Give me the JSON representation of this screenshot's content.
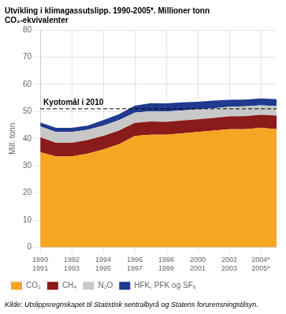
{
  "chart_data": {
    "type": "area",
    "stacked": true,
    "title": "Utvikling i klimagassutslipp. 1990-2005*. Millioner tonn",
    "subtitle": "CO₂-ekvivalenter",
    "ylabel": "Mill. tonn",
    "source": "Kilde: Utslippsregnskapet til Statistisk sentralbyrå og Statens forurensningstilsyn.",
    "x": [
      1990,
      1991,
      1992,
      1993,
      1994,
      1995,
      1996,
      1997,
      1998,
      1999,
      2000,
      2001,
      2002,
      2003,
      2004,
      2005
    ],
    "series": [
      {
        "name": "CO₂",
        "color": "#F5A623",
        "values": [
          35.0,
          33.5,
          33.5,
          34.5,
          36.0,
          38.0,
          41.0,
          41.5,
          41.5,
          42.0,
          42.5,
          43.0,
          43.5,
          43.5,
          44.0,
          43.5
        ]
      },
      {
        "name": "CH₄",
        "color": "#8B1A1A",
        "values": [
          5.5,
          5.0,
          5.0,
          5.0,
          5.0,
          5.0,
          4.8,
          4.8,
          4.7,
          4.7,
          4.6,
          4.6,
          4.7,
          4.8,
          4.8,
          5.0
        ]
      },
      {
        "name": "N₂O",
        "color": "#C8C8C8",
        "values": [
          4.0,
          4.0,
          4.0,
          3.8,
          3.8,
          3.8,
          3.8,
          3.8,
          3.8,
          3.7,
          3.7,
          3.6,
          3.6,
          3.6,
          3.5,
          3.5
        ]
      },
      {
        "name": "HFK, PFK og SF₆",
        "color": "#1F3A8F",
        "values": [
          1.5,
          1.5,
          1.5,
          1.5,
          2.0,
          2.2,
          2.5,
          3.0,
          3.0,
          3.0,
          2.8,
          2.8,
          2.5,
          2.5,
          2.5,
          2.5
        ]
      }
    ],
    "xlim": [
      1990,
      2005
    ],
    "xticks": [
      {
        "value": 1990,
        "label": "1990\n1991"
      },
      {
        "value": 1992,
        "label": "1992\n1993"
      },
      {
        "value": 1994,
        "label": "1994\n1995"
      },
      {
        "value": 1996,
        "label": "1996\n1997"
      },
      {
        "value": 1998,
        "label": "1998\n1999"
      },
      {
        "value": 2000,
        "label": "2000\n2001"
      },
      {
        "value": 2002,
        "label": "2002\n2003"
      },
      {
        "value": 2004,
        "label": "2004*\n2005*"
      }
    ],
    "ylim": [
      0,
      80
    ],
    "yticks": [
      0,
      10,
      20,
      30,
      40,
      50,
      60,
      70,
      80
    ],
    "grid": true,
    "legend": "bottom",
    "annotations": [
      {
        "type": "hline",
        "y": 51.0,
        "text": "Kyotomål i 2010",
        "line_style": "dashed",
        "color": "#000000"
      }
    ]
  }
}
